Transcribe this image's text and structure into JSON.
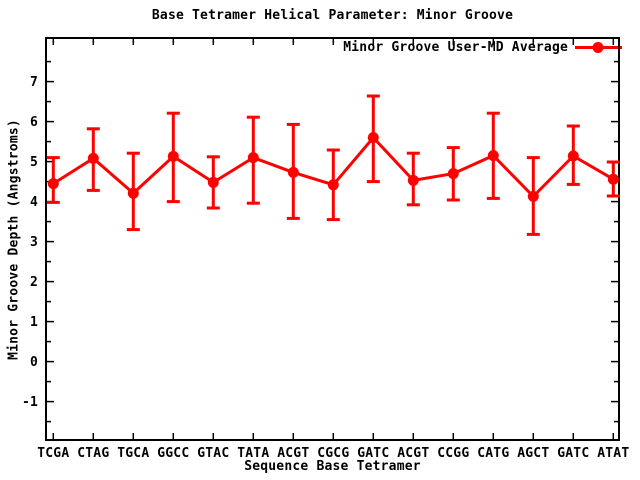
{
  "title": "Base Tetramer Helical Parameter: Minor Groove",
  "legend": {
    "label": "Minor Groove User-MD Average"
  },
  "axes": {
    "x_label": "Sequence Base Tetramer",
    "y_label": "Minor Groove Depth (Angstroms)"
  },
  "colors": {
    "series": "#ff0000",
    "text": "#000000",
    "background": "#ffffff",
    "border": "#000000"
  },
  "chart_data": {
    "type": "line",
    "title": "Base Tetramer Helical Parameter: Minor Groove",
    "xlabel": "Sequence Base Tetramer",
    "ylabel": "Minor Groove Depth (Angstroms)",
    "categories": [
      "TCGA",
      "CTAG",
      "TGCA",
      "GGCC",
      "GTAC",
      "TATA",
      "ACGT",
      "CGCG",
      "GATC",
      "ACGT",
      "CCGG",
      "CATG",
      "AGCT",
      "GATC",
      "ATAT"
    ],
    "series": [
      {
        "name": "Minor Groove User-MD Average",
        "marker": "filled-circle",
        "error_bars": true,
        "values": [
          4.45,
          5.08,
          4.21,
          5.13,
          4.48,
          5.1,
          4.73,
          4.42,
          5.6,
          4.53,
          4.7,
          5.15,
          4.13,
          5.14,
          4.56
        ],
        "err_low": [
          3.98,
          4.28,
          3.3,
          4.0,
          3.84,
          3.96,
          3.58,
          3.55,
          4.5,
          3.92,
          4.04,
          4.08,
          3.18,
          4.43,
          4.14
        ],
        "err_high": [
          5.1,
          5.82,
          5.21,
          6.21,
          5.12,
          6.11,
          5.93,
          5.29,
          6.64,
          5.21,
          5.35,
          6.21,
          5.1,
          5.89,
          4.99
        ]
      }
    ],
    "y_ticks": [
      -1,
      0,
      1,
      2,
      3,
      4,
      5,
      6,
      7
    ],
    "y_minor_step": 0.5,
    "ylim": [
      -1.96,
      8.09
    ],
    "grid": false,
    "legend_position": "top-right"
  }
}
